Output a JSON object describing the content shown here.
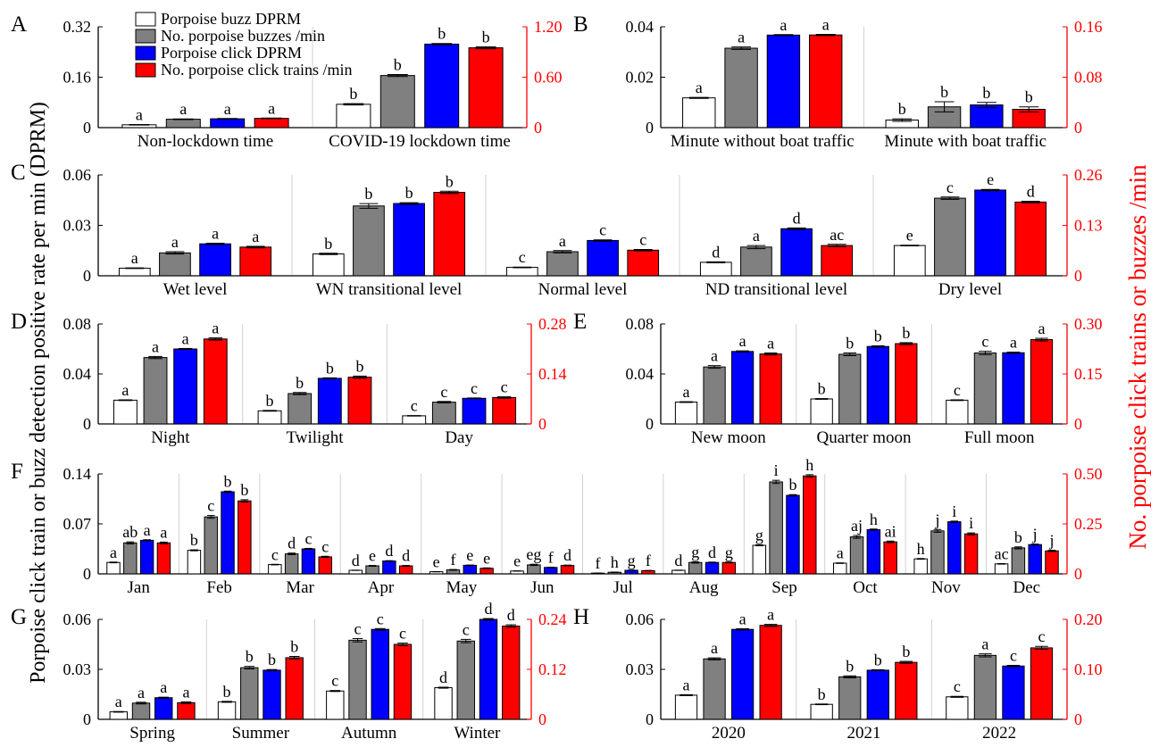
{
  "figure": {
    "y_label_left": "Porpoise click train or buzz detection positive rate per min (DPRM)",
    "y_label_right": "No. porpoise click trains or buzzes /min",
    "colors": {
      "buzz_dprm": "#ffffff",
      "buzzes": "#808080",
      "click_dprm": "#0000ff",
      "trains": "#ff0000",
      "right_axis": "#ff0000"
    }
  },
  "legend": [
    {
      "label": "Porpoise buzz DPRM",
      "color": "#ffffff"
    },
    {
      "label": "No. porpoise buzzes /min",
      "color": "#808080"
    },
    {
      "label": "Porpoise click DPRM",
      "color": "#0000ff"
    },
    {
      "label": "No. porpoise click trains /min",
      "color": "#ff0000"
    }
  ],
  "chart_data": [
    {
      "panel": "A",
      "type": "bar",
      "categories": [
        "Non-lockdown time",
        "COVID-19 lockdown time"
      ],
      "ylim_left": [
        0,
        0.32
      ],
      "yticks_left": [
        "0",
        "0.16",
        "0.32"
      ],
      "ylim_right": [
        0,
        1.2
      ],
      "yticks_right": [
        "0",
        "0.60",
        "1.20"
      ],
      "series": [
        {
          "name": "Porpoise buzz DPRM",
          "axis": "left",
          "values": [
            0.009,
            0.074
          ],
          "errors": [
            0.001,
            0.002
          ],
          "letters": [
            "a",
            "b"
          ]
        },
        {
          "name": "No. porpoise buzzes /min",
          "axis": "right",
          "values": [
            0.1,
            0.62
          ],
          "errors": [
            0.004,
            0.012
          ],
          "letters": [
            "a",
            "b"
          ]
        },
        {
          "name": "Porpoise click DPRM",
          "axis": "left",
          "values": [
            0.028,
            0.265
          ],
          "errors": [
            0.001,
            0.002
          ],
          "letters": [
            "a",
            "b"
          ]
        },
        {
          "name": "No. porpoise click trains /min",
          "axis": "right",
          "values": [
            0.11,
            0.95
          ],
          "errors": [
            0.004,
            0.012
          ],
          "letters": [
            "a",
            "b"
          ]
        }
      ]
    },
    {
      "panel": "B",
      "type": "bar",
      "categories": [
        "Minute without boat traffic",
        "Minute with boat traffic"
      ],
      "ylim_left": [
        0,
        0.04
      ],
      "yticks_left": [
        "0",
        "0.02",
        "0.04"
      ],
      "ylim_right": [
        0,
        0.16
      ],
      "yticks_right": [
        "0",
        "0.08",
        "0.16"
      ],
      "series": [
        {
          "name": "Porpoise buzz DPRM",
          "axis": "left",
          "values": [
            0.0118,
            0.003
          ],
          "errors": [
            0.0002,
            0.0005
          ],
          "letters": [
            "a",
            "b"
          ]
        },
        {
          "name": "No. porpoise buzzes /min",
          "axis": "right",
          "values": [
            0.126,
            0.033
          ],
          "errors": [
            0.002,
            0.008
          ],
          "letters": [
            "a",
            "b"
          ]
        },
        {
          "name": "Porpoise click DPRM",
          "axis": "left",
          "values": [
            0.0367,
            0.009
          ],
          "errors": [
            0.0002,
            0.001
          ],
          "letters": [
            "a",
            "b"
          ]
        },
        {
          "name": "No. porpoise click trains /min",
          "axis": "right",
          "values": [
            0.147,
            0.029
          ],
          "errors": [
            0.001,
            0.004
          ],
          "letters": [
            "a",
            "b"
          ]
        }
      ]
    },
    {
      "panel": "C",
      "type": "bar",
      "categories": [
        "Wet level",
        "WN transitional level",
        "Normal level",
        "ND transitional level",
        "Dry level"
      ],
      "ylim_left": [
        0,
        0.06
      ],
      "yticks_left": [
        "0",
        "0.03",
        "0.06"
      ],
      "ylim_right": [
        0,
        0.26
      ],
      "yticks_right": [
        "0",
        "0.13",
        "0.26"
      ],
      "series": [
        {
          "name": "Porpoise buzz DPRM",
          "axis": "left",
          "values": [
            0.0045,
            0.013,
            0.005,
            0.008,
            0.018
          ],
          "errors": [
            0.0002,
            0.0004,
            0.0002,
            0.0003,
            0.0002
          ],
          "letters": [
            "a",
            "b",
            "c",
            "d",
            "e"
          ]
        },
        {
          "name": "No. porpoise buzzes /min",
          "axis": "right",
          "values": [
            0.059,
            0.18,
            0.062,
            0.074,
            0.2
          ],
          "errors": [
            0.003,
            0.006,
            0.003,
            0.004,
            0.003
          ],
          "letters": [
            "a",
            "b",
            "a",
            "a",
            "c"
          ]
        },
        {
          "name": "Porpoise click DPRM",
          "axis": "left",
          "values": [
            0.019,
            0.043,
            0.021,
            0.028,
            0.051
          ],
          "errors": [
            0.0004,
            0.0005,
            0.0004,
            0.0005,
            0.0004
          ],
          "letters": [
            "a",
            "b",
            "c",
            "d",
            "e"
          ]
        },
        {
          "name": "No. porpoise click trains /min",
          "axis": "right",
          "values": [
            0.074,
            0.215,
            0.066,
            0.078,
            0.19
          ],
          "errors": [
            0.002,
            0.003,
            0.002,
            0.003,
            0.002
          ],
          "letters": [
            "a",
            "b",
            "c",
            "ac",
            "d"
          ]
        }
      ]
    },
    {
      "panel": "D",
      "type": "bar",
      "categories": [
        "Night",
        "Twilight",
        "Day"
      ],
      "ylim_left": [
        0,
        0.08
      ],
      "yticks_left": [
        "0",
        "0.04",
        "0.08"
      ],
      "ylim_right": [
        0,
        0.28
      ],
      "yticks_right": [
        "0",
        "0.14",
        "0.28"
      ],
      "series": [
        {
          "name": "Porpoise buzz DPRM",
          "axis": "left",
          "values": [
            0.019,
            0.0105,
            0.0065
          ],
          "errors": [
            0.0003,
            0.0003,
            0.0002
          ],
          "letters": [
            "a",
            "b",
            "c"
          ]
        },
        {
          "name": "No. porpoise buzzes /min",
          "axis": "right",
          "values": [
            0.186,
            0.085,
            0.061
          ],
          "errors": [
            0.003,
            0.003,
            0.002
          ],
          "letters": [
            "a",
            "b",
            "c"
          ]
        },
        {
          "name": "Porpoise click DPRM",
          "axis": "left",
          "values": [
            0.06,
            0.0365,
            0.0205
          ],
          "errors": [
            0.0004,
            0.0004,
            0.0003
          ],
          "letters": [
            "a",
            "b",
            "c"
          ]
        },
        {
          "name": "No. porpoise click trains /min",
          "axis": "right",
          "values": [
            0.238,
            0.131,
            0.074
          ],
          "errors": [
            0.003,
            0.003,
            0.002
          ],
          "letters": [
            "a",
            "b",
            "c"
          ]
        }
      ]
    },
    {
      "panel": "E",
      "type": "bar",
      "categories": [
        "New moon",
        "Quarter moon",
        "Full moon"
      ],
      "ylim_left": [
        0,
        0.08
      ],
      "yticks_left": [
        "0",
        "0.04",
        "0.08"
      ],
      "ylim_right": [
        0,
        0.3
      ],
      "yticks_right": [
        "0",
        "0.15",
        "0.30"
      ],
      "series": [
        {
          "name": "Porpoise buzz DPRM",
          "axis": "left",
          "values": [
            0.0175,
            0.02,
            0.019
          ],
          "errors": [
            0.0003,
            0.0003,
            0.0003
          ],
          "letters": [
            "a",
            "b",
            "c"
          ]
        },
        {
          "name": "No. porpoise buzzes /min",
          "axis": "right",
          "values": [
            0.171,
            0.209,
            0.213
          ],
          "errors": [
            0.004,
            0.004,
            0.005
          ],
          "letters": [
            "a",
            "b",
            "c"
          ]
        },
        {
          "name": "Porpoise click DPRM",
          "axis": "left",
          "values": [
            0.058,
            0.062,
            0.057
          ],
          "errors": [
            0.0005,
            0.0005,
            0.0005
          ],
          "letters": [
            "a",
            "b",
            "a"
          ]
        },
        {
          "name": "No. porpoise click trains /min",
          "axis": "right",
          "values": [
            0.21,
            0.241,
            0.253
          ],
          "errors": [
            0.003,
            0.003,
            0.004
          ],
          "letters": [
            "a",
            "b",
            "a"
          ]
        }
      ]
    },
    {
      "panel": "F",
      "type": "bar",
      "categories": [
        "Jan",
        "Feb",
        "Mar",
        "Apr",
        "May",
        "Jun",
        "Jul",
        "Aug",
        "Sep",
        "Oct",
        "Nov",
        "Dec"
      ],
      "ylim_left": [
        0,
        0.14
      ],
      "yticks_left": [
        "0",
        "0.07",
        "0.14"
      ],
      "ylim_right": [
        0,
        0.5
      ],
      "yticks_right": [
        "0",
        "0.25",
        "0.50"
      ],
      "series": [
        {
          "name": "Porpoise buzz DPRM",
          "axis": "left",
          "values": [
            0.016,
            0.033,
            0.013,
            0.005,
            0.003,
            0.004,
            0.001,
            0.005,
            0.04,
            0.015,
            0.021,
            0.014
          ],
          "errors": [
            0.0005,
            0.0007,
            0.0004,
            0.0002,
            0.0002,
            0.0002,
            0.0001,
            0.0002,
            0.0007,
            0.0004,
            0.0005,
            0.0004
          ],
          "letters": [
            "a",
            "b",
            "c",
            "d",
            "e",
            "e",
            "f",
            "d",
            "g",
            "a",
            "h",
            "ac"
          ]
        },
        {
          "name": "No. porpoise buzzes /min",
          "axis": "right",
          "values": [
            0.155,
            0.285,
            0.1,
            0.04,
            0.02,
            0.045,
            0.008,
            0.057,
            0.46,
            0.185,
            0.215,
            0.13
          ],
          "errors": [
            0.005,
            0.007,
            0.004,
            0.002,
            0.002,
            0.003,
            0.001,
            0.003,
            0.008,
            0.007,
            0.007,
            0.005
          ],
          "letters": [
            "ab",
            "c",
            "d",
            "e",
            "f",
            "eg",
            "h",
            "g",
            "i",
            "aj",
            "j",
            "b"
          ]
        },
        {
          "name": "Porpoise click DPRM",
          "axis": "left",
          "values": [
            0.047,
            0.115,
            0.035,
            0.018,
            0.012,
            0.009,
            0.005,
            0.016,
            0.11,
            0.062,
            0.073,
            0.041
          ],
          "errors": [
            0.0008,
            0.0009,
            0.0007,
            0.0005,
            0.0004,
            0.0004,
            0.0003,
            0.0005,
            0.001,
            0.0008,
            0.0009,
            0.0007
          ],
          "letters": [
            "a",
            "b",
            "c",
            "d",
            "e",
            "f",
            "g",
            "d",
            "b",
            "h",
            "i",
            "j"
          ]
        },
        {
          "name": "No. porpoise click trains /min",
          "axis": "right",
          "values": [
            0.155,
            0.365,
            0.085,
            0.04,
            0.028,
            0.042,
            0.016,
            0.057,
            0.49,
            0.16,
            0.2,
            0.115
          ],
          "errors": [
            0.004,
            0.006,
            0.003,
            0.002,
            0.002,
            0.002,
            0.001,
            0.002,
            0.006,
            0.004,
            0.005,
            0.003
          ],
          "letters": [
            "a",
            "b",
            "c",
            "d",
            "e",
            "d",
            "f",
            "g",
            "h",
            "ai",
            "i",
            "j"
          ]
        }
      ]
    },
    {
      "panel": "G",
      "type": "bar",
      "categories": [
        "Spring",
        "Summer",
        "Autumn",
        "Winter"
      ],
      "ylim_left": [
        0,
        0.06
      ],
      "yticks_left": [
        "0",
        "0.03",
        "0.06"
      ],
      "ylim_right": [
        0,
        0.24
      ],
      "yticks_right": [
        "0",
        "0.12",
        "0.24"
      ],
      "series": [
        {
          "name": "Porpoise buzz DPRM",
          "axis": "left",
          "values": [
            0.0045,
            0.0105,
            0.017,
            0.019
          ],
          "errors": [
            0.0002,
            0.0003,
            0.0003,
            0.0003
          ],
          "letters": [
            "a",
            "b",
            "c",
            "d"
          ]
        },
        {
          "name": "No. porpoise buzzes /min",
          "axis": "right",
          "values": [
            0.039,
            0.124,
            0.19,
            0.188
          ],
          "errors": [
            0.002,
            0.003,
            0.004,
            0.004
          ],
          "letters": [
            "a",
            "b",
            "c",
            "c"
          ]
        },
        {
          "name": "Porpoise click DPRM",
          "axis": "left",
          "values": [
            0.013,
            0.0295,
            0.054,
            0.06
          ],
          "errors": [
            0.0003,
            0.0004,
            0.0005,
            0.0005
          ],
          "letters": [
            "a",
            "b",
            "c",
            "d"
          ]
        },
        {
          "name": "No. porpoise click trains /min",
          "axis": "right",
          "values": [
            0.04,
            0.148,
            0.18,
            0.224
          ],
          "errors": [
            0.002,
            0.003,
            0.003,
            0.003
          ],
          "letters": [
            "a",
            "b",
            "c",
            "d"
          ]
        }
      ]
    },
    {
      "panel": "H",
      "type": "bar",
      "categories": [
        "2020",
        "2021",
        "2022"
      ],
      "ylim_left": [
        0,
        0.06
      ],
      "yticks_left": [
        "0",
        "0.03",
        "0.06"
      ],
      "ylim_right": [
        0,
        0.2
      ],
      "yticks_right": [
        "0",
        "0.10",
        "0.20"
      ],
      "series": [
        {
          "name": "Porpoise buzz DPRM",
          "axis": "left",
          "values": [
            0.0145,
            0.009,
            0.0135
          ],
          "errors": [
            0.0003,
            0.0002,
            0.0003
          ],
          "letters": [
            "a",
            "b",
            "c"
          ]
        },
        {
          "name": "No. porpoise buzzes /min",
          "axis": "right",
          "values": [
            0.121,
            0.085,
            0.128
          ],
          "errors": [
            0.002,
            0.002,
            0.003
          ],
          "letters": [
            "a",
            "b",
            "a"
          ]
        },
        {
          "name": "Porpoise click DPRM",
          "axis": "left",
          "values": [
            0.054,
            0.0295,
            0.032
          ],
          "errors": [
            0.0004,
            0.0003,
            0.0004
          ],
          "letters": [
            "a",
            "b",
            "c"
          ]
        },
        {
          "name": "No. porpoise click trains /min",
          "axis": "right",
          "values": [
            0.188,
            0.114,
            0.143
          ],
          "errors": [
            0.002,
            0.002,
            0.003
          ],
          "letters": [
            "a",
            "b",
            "c"
          ]
        }
      ]
    }
  ]
}
